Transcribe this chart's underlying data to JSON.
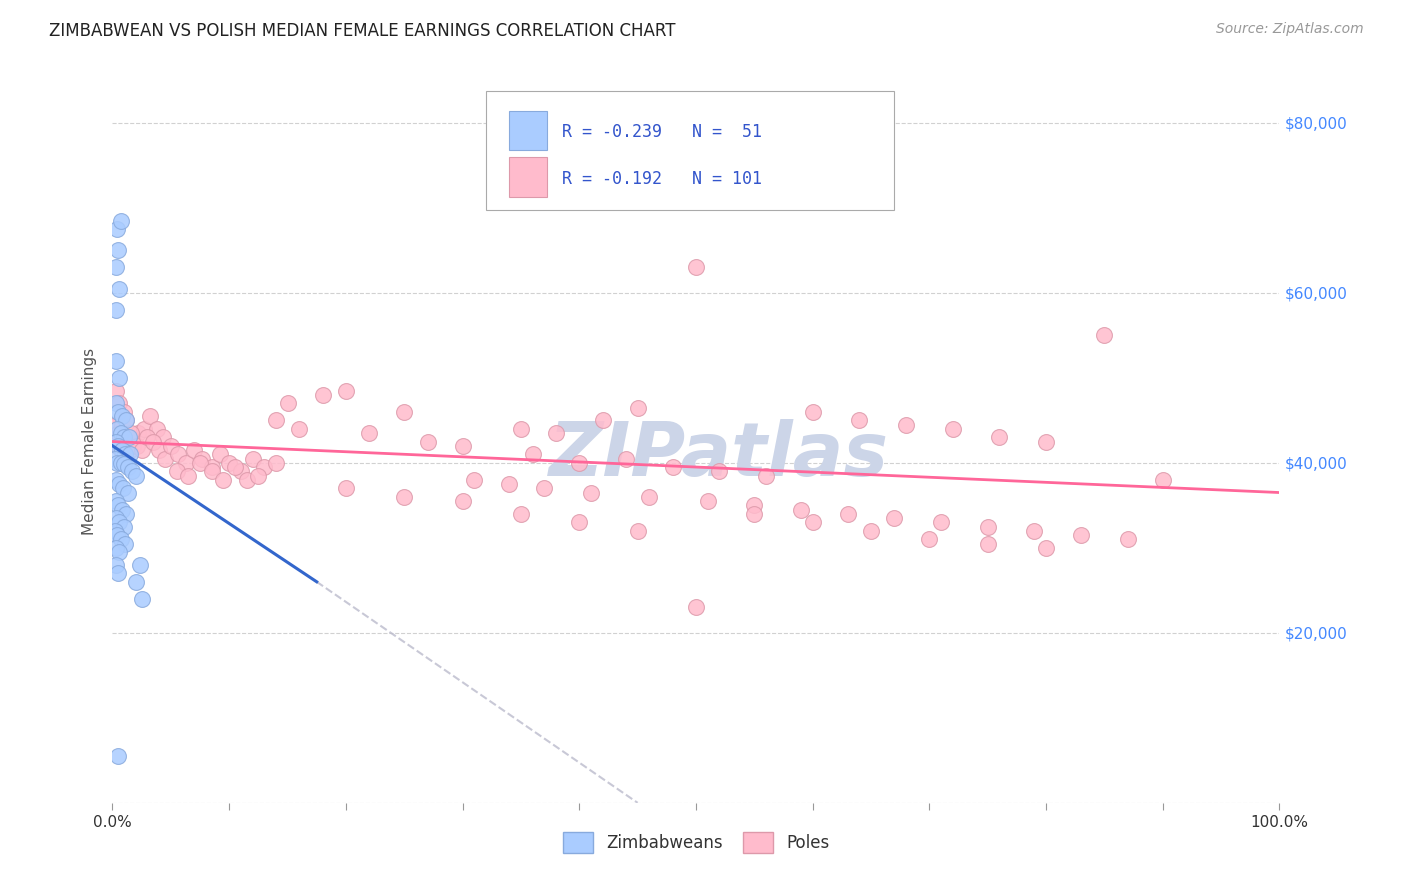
{
  "title": "ZIMBABWEAN VS POLISH MEDIAN FEMALE EARNINGS CORRELATION CHART",
  "source": "Source: ZipAtlas.com",
  "ylabel": "Median Female Earnings",
  "xmin": 0.0,
  "xmax": 1.0,
  "ymin": 0,
  "ymax": 85000,
  "yticks": [
    0,
    20000,
    40000,
    60000,
    80000
  ],
  "ytick_labels": [
    "",
    "$20,000",
    "$40,000",
    "$60,000",
    "$80,000"
  ],
  "background_color": "#ffffff",
  "grid_color": "#cccccc",
  "zimbabwe_color": "#aaccff",
  "pole_color": "#ffbbcc",
  "zimbabwe_edge_color": "#88aadd",
  "pole_edge_color": "#dd99aa",
  "blue_line_color": "#3366cc",
  "pink_line_color": "#ff6699",
  "dashed_line_color": "#bbbbcc",
  "legend_text_color": "#3355cc",
  "right_tick_color": "#4488ff",
  "watermark_color": "#ccd5e8",
  "title_fontsize": 12,
  "axis_label_fontsize": 11,
  "tick_fontsize": 11,
  "zimbabwe_points": [
    [
      0.004,
      67500
    ],
    [
      0.007,
      68500
    ],
    [
      0.005,
      65000
    ],
    [
      0.003,
      63000
    ],
    [
      0.006,
      60500
    ],
    [
      0.003,
      58000
    ],
    [
      0.003,
      52000
    ],
    [
      0.006,
      50000
    ],
    [
      0.003,
      47000
    ],
    [
      0.005,
      46000
    ],
    [
      0.008,
      45500
    ],
    [
      0.012,
      45000
    ],
    [
      0.004,
      44000
    ],
    [
      0.007,
      43500
    ],
    [
      0.01,
      43000
    ],
    [
      0.014,
      43000
    ],
    [
      0.003,
      42500
    ],
    [
      0.005,
      42000
    ],
    [
      0.008,
      41500
    ],
    [
      0.011,
      41000
    ],
    [
      0.015,
      41000
    ],
    [
      0.002,
      40500
    ],
    [
      0.004,
      40000
    ],
    [
      0.007,
      40000
    ],
    [
      0.01,
      39800
    ],
    [
      0.013,
      39500
    ],
    [
      0.017,
      39000
    ],
    [
      0.02,
      38500
    ],
    [
      0.003,
      38000
    ],
    [
      0.006,
      37500
    ],
    [
      0.009,
      37000
    ],
    [
      0.013,
      36500
    ],
    [
      0.003,
      35500
    ],
    [
      0.005,
      35000
    ],
    [
      0.008,
      34500
    ],
    [
      0.012,
      34000
    ],
    [
      0.003,
      33500
    ],
    [
      0.006,
      33000
    ],
    [
      0.01,
      32500
    ],
    [
      0.002,
      32000
    ],
    [
      0.004,
      31500
    ],
    [
      0.007,
      31000
    ],
    [
      0.011,
      30500
    ],
    [
      0.003,
      30000
    ],
    [
      0.006,
      29500
    ],
    [
      0.003,
      28000
    ],
    [
      0.005,
      27000
    ],
    [
      0.024,
      28000
    ],
    [
      0.005,
      5500
    ],
    [
      0.02,
      26000
    ],
    [
      0.025,
      24000
    ]
  ],
  "pole_points": [
    [
      0.003,
      48500
    ],
    [
      0.006,
      47000
    ],
    [
      0.01,
      46000
    ],
    [
      0.007,
      45000
    ],
    [
      0.003,
      44500
    ],
    [
      0.005,
      43500
    ],
    [
      0.009,
      43000
    ],
    [
      0.013,
      42500
    ],
    [
      0.004,
      42000
    ],
    [
      0.007,
      41500
    ],
    [
      0.011,
      41000
    ],
    [
      0.015,
      41500
    ],
    [
      0.018,
      42000
    ],
    [
      0.022,
      43500
    ],
    [
      0.027,
      44000
    ],
    [
      0.032,
      45500
    ],
    [
      0.038,
      44000
    ],
    [
      0.043,
      43000
    ],
    [
      0.008,
      44500
    ],
    [
      0.012,
      45000
    ],
    [
      0.016,
      43500
    ],
    [
      0.021,
      42000
    ],
    [
      0.025,
      41500
    ],
    [
      0.03,
      43000
    ],
    [
      0.035,
      42500
    ],
    [
      0.04,
      41500
    ],
    [
      0.045,
      40500
    ],
    [
      0.05,
      42000
    ],
    [
      0.056,
      41000
    ],
    [
      0.063,
      40000
    ],
    [
      0.07,
      41500
    ],
    [
      0.077,
      40500
    ],
    [
      0.085,
      39500
    ],
    [
      0.092,
      41000
    ],
    [
      0.1,
      40000
    ],
    [
      0.11,
      39000
    ],
    [
      0.12,
      40500
    ],
    [
      0.13,
      39500
    ],
    [
      0.14,
      40000
    ],
    [
      0.055,
      39000
    ],
    [
      0.065,
      38500
    ],
    [
      0.075,
      40000
    ],
    [
      0.085,
      39000
    ],
    [
      0.095,
      38000
    ],
    [
      0.105,
      39500
    ],
    [
      0.115,
      38000
    ],
    [
      0.125,
      38500
    ],
    [
      0.15,
      47000
    ],
    [
      0.2,
      48500
    ],
    [
      0.25,
      46000
    ],
    [
      0.18,
      48000
    ],
    [
      0.14,
      45000
    ],
    [
      0.16,
      44000
    ],
    [
      0.22,
      43500
    ],
    [
      0.27,
      42500
    ],
    [
      0.3,
      42000
    ],
    [
      0.35,
      44000
    ],
    [
      0.38,
      43500
    ],
    [
      0.42,
      45000
    ],
    [
      0.45,
      46500
    ],
    [
      0.5,
      63000
    ],
    [
      0.36,
      41000
    ],
    [
      0.4,
      40000
    ],
    [
      0.44,
      40500
    ],
    [
      0.48,
      39500
    ],
    [
      0.52,
      39000
    ],
    [
      0.56,
      38500
    ],
    [
      0.6,
      46000
    ],
    [
      0.64,
      45000
    ],
    [
      0.68,
      44500
    ],
    [
      0.72,
      44000
    ],
    [
      0.76,
      43000
    ],
    [
      0.8,
      42500
    ],
    [
      0.85,
      55000
    ],
    [
      0.31,
      38000
    ],
    [
      0.34,
      37500
    ],
    [
      0.37,
      37000
    ],
    [
      0.41,
      36500
    ],
    [
      0.46,
      36000
    ],
    [
      0.51,
      35500
    ],
    [
      0.55,
      35000
    ],
    [
      0.59,
      34500
    ],
    [
      0.63,
      34000
    ],
    [
      0.67,
      33500
    ],
    [
      0.71,
      33000
    ],
    [
      0.75,
      32500
    ],
    [
      0.79,
      32000
    ],
    [
      0.83,
      31500
    ],
    [
      0.87,
      31000
    ],
    [
      0.9,
      38000
    ],
    [
      0.2,
      37000
    ],
    [
      0.25,
      36000
    ],
    [
      0.3,
      35500
    ],
    [
      0.35,
      34000
    ],
    [
      0.4,
      33000
    ],
    [
      0.45,
      32000
    ],
    [
      0.5,
      23000
    ],
    [
      0.55,
      34000
    ],
    [
      0.6,
      33000
    ],
    [
      0.65,
      32000
    ],
    [
      0.7,
      31000
    ],
    [
      0.75,
      30500
    ],
    [
      0.8,
      30000
    ]
  ]
}
